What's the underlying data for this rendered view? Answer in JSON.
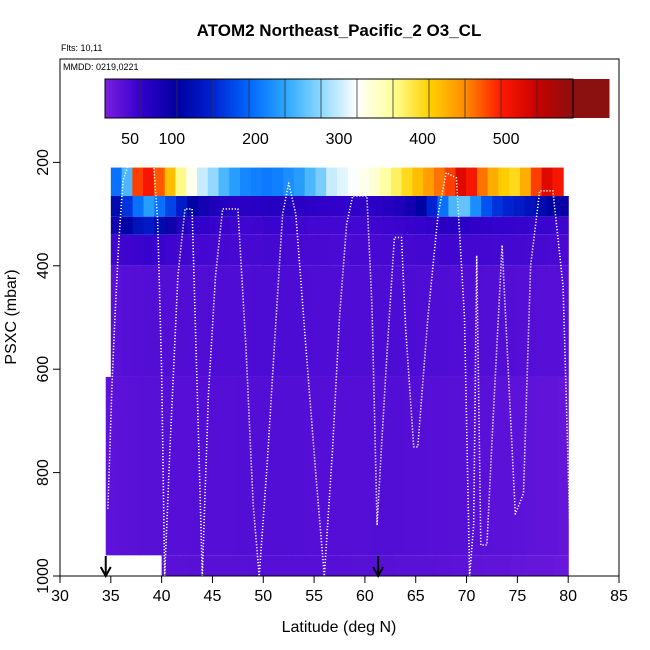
{
  "chart_data": {
    "type": "heatmap",
    "title": "ATOM2 Northeast_Pacific_2 O3_CL",
    "annotations": [
      "Flts: 10,11",
      "MMDD: 0219,0221"
    ],
    "xlabel": "Latitude (deg N)",
    "ylabel": "PSXC (mbar)",
    "xlim": [
      30,
      85
    ],
    "ylim": [
      1000,
      0
    ],
    "x_ticks": [
      30,
      35,
      40,
      45,
      50,
      55,
      60,
      65,
      70,
      75,
      80,
      85
    ],
    "y_ticks": [
      200,
      400,
      600,
      800,
      1000
    ],
    "colorbar": {
      "ticks": [
        50,
        100,
        200,
        300,
        400,
        500
      ],
      "range": [
        20,
        580
      ],
      "colors": [
        "#7a1fe0",
        "#3300cc",
        "#0000a0",
        "#0022d0",
        "#0066ff",
        "#2aa6ff",
        "#8ed8ff",
        "#ffffff",
        "#ffff9a",
        "#ffd200",
        "#ff8c00",
        "#ff1a00",
        "#c80000",
        "#8b1010"
      ]
    },
    "heatmap_bands": [
      {
        "p_top": 210,
        "p_bottom": 265,
        "lat_start": 35,
        "lat_end": 79.5,
        "values": [
          200,
          250,
          480,
          500,
          470,
          420,
          370,
          330,
          300,
          280,
          250,
          230,
          215,
          210,
          205,
          210,
          220,
          230,
          250,
          270,
          300,
          310,
          320,
          330,
          340,
          360,
          380,
          400,
          420,
          440,
          460,
          480,
          520,
          500,
          460,
          430,
          410,
          400,
          430,
          480,
          520,
          500
        ]
      },
      {
        "p_top": 265,
        "p_bottom": 305,
        "lat_start": 35,
        "lat_end": 80,
        "values": [
          120,
          160,
          200,
          230,
          200,
          170,
          140,
          110,
          90,
          80,
          75,
          70,
          70,
          72,
          75,
          75,
          72,
          70,
          68,
          66,
          65,
          65,
          66,
          68,
          70,
          74,
          80,
          90,
          110,
          150,
          200,
          250,
          260,
          220,
          180,
          160,
          150,
          140,
          130,
          120,
          110,
          100
        ]
      },
      {
        "p_top": 305,
        "p_bottom": 340,
        "lat_start": 35,
        "lat_end": 80,
        "values": [
          90,
          110,
          130,
          140,
          120,
          95,
          80,
          70,
          65,
          60,
          58,
          56,
          55,
          56,
          58,
          58,
          57,
          55,
          54,
          53,
          53,
          53,
          54,
          55,
          56,
          57,
          58,
          60,
          62,
          66,
          70,
          72,
          70,
          66,
          64,
          62,
          62,
          60,
          60,
          58,
          58,
          56
        ]
      },
      {
        "p_top": 340,
        "p_bottom": 400,
        "lat_start": 35,
        "lat_end": 80,
        "values": [
          55,
          56,
          58,
          60,
          58,
          56,
          55,
          54,
          53,
          52,
          52,
          51,
          51,
          51,
          52,
          52,
          51,
          50,
          50,
          50,
          49,
          49,
          50,
          50,
          51,
          51,
          52,
          52,
          53,
          54,
          55,
          55,
          54,
          53,
          53,
          52,
          52,
          52,
          51,
          51,
          50,
          50
        ]
      },
      {
        "p_top": 400,
        "p_bottom": 615,
        "lat_start": 35,
        "lat_end": 80,
        "values": [
          40,
          42,
          43,
          44,
          44,
          44,
          45,
          45,
          45,
          46,
          46,
          46,
          46,
          47,
          47,
          47,
          47,
          47,
          46,
          46,
          46,
          46,
          46,
          46,
          47,
          47,
          47,
          47,
          46,
          46,
          46,
          45,
          45,
          45,
          44,
          44,
          44,
          43,
          43,
          42,
          42,
          42
        ]
      },
      {
        "p_top": 615,
        "p_bottom": 960,
        "lat_start": 34.5,
        "lat_end": 80,
        "values": [
          38,
          39,
          40,
          41,
          41,
          42,
          42,
          42,
          43,
          43,
          43,
          43,
          44,
          44,
          44,
          44,
          44,
          44,
          43,
          43,
          43,
          43,
          43,
          43,
          44,
          44,
          44,
          43,
          43,
          42,
          42,
          41,
          41,
          40,
          40,
          39,
          39,
          38,
          37,
          36,
          35,
          34
        ]
      },
      {
        "p_top": 960,
        "p_bottom": 1000,
        "lat_start": 40,
        "lat_end": 80,
        "values": [
          40,
          40,
          41,
          41,
          41,
          41,
          42,
          42,
          42,
          42,
          42,
          42,
          42,
          41,
          41,
          41,
          40,
          40,
          40,
          39,
          38,
          37,
          36,
          35,
          34,
          33,
          32,
          31
        ]
      }
    ],
    "flight_track": [
      [
        34.7,
        870
      ],
      [
        34.9,
        760
      ],
      [
        35.1,
        640
      ],
      [
        35.4,
        500
      ],
      [
        35.8,
        350
      ],
      [
        36.2,
        235
      ],
      [
        36.8,
        200
      ],
      [
        39.2,
        200
      ],
      [
        39.6,
        310
      ],
      [
        40.0,
        600
      ],
      [
        40.3,
        1000
      ],
      [
        40.8,
        760
      ],
      [
        41.6,
        420
      ],
      [
        42.3,
        290
      ],
      [
        43.0,
        290
      ],
      [
        43.5,
        640
      ],
      [
        44.0,
        1000
      ],
      [
        44.6,
        650
      ],
      [
        45.3,
        420
      ],
      [
        46.0,
        290
      ],
      [
        47.5,
        290
      ],
      [
        48.3,
        560
      ],
      [
        49.0,
        860
      ],
      [
        49.6,
        1000
      ],
      [
        50.4,
        780
      ],
      [
        51.2,
        520
      ],
      [
        51.9,
        300
      ],
      [
        52.5,
        240
      ],
      [
        53.2,
        300
      ],
      [
        54.2,
        560
      ],
      [
        55.2,
        810
      ],
      [
        56.0,
        1000
      ],
      [
        56.8,
        760
      ],
      [
        57.5,
        500
      ],
      [
        58.2,
        320
      ],
      [
        58.8,
        265
      ],
      [
        60.2,
        265
      ],
      [
        60.7,
        480
      ],
      [
        61.2,
        900
      ],
      [
        61.6,
        760
      ],
      [
        62.2,
        560
      ],
      [
        62.9,
        345
      ],
      [
        63.6,
        345
      ],
      [
        64.0,
        520
      ],
      [
        64.8,
        750
      ],
      [
        65.2,
        750
      ],
      [
        66.2,
        500
      ],
      [
        67.2,
        300
      ],
      [
        68.0,
        220
      ],
      [
        69.0,
        230
      ],
      [
        69.8,
        500
      ],
      [
        70.3,
        1000
      ],
      [
        70.7,
        900
      ],
      [
        71.0,
        380
      ],
      [
        71.4,
        940
      ],
      [
        72.0,
        940
      ],
      [
        72.6,
        700
      ],
      [
        73.5,
        360
      ],
      [
        74.2,
        640
      ],
      [
        74.8,
        880
      ],
      [
        75.6,
        840
      ],
      [
        76.3,
        400
      ],
      [
        77.2,
        255
      ],
      [
        78.5,
        255
      ],
      [
        79.5,
        440
      ],
      [
        80.3,
        1000
      ]
    ],
    "arrows": [
      34.5,
      61.3
    ]
  }
}
